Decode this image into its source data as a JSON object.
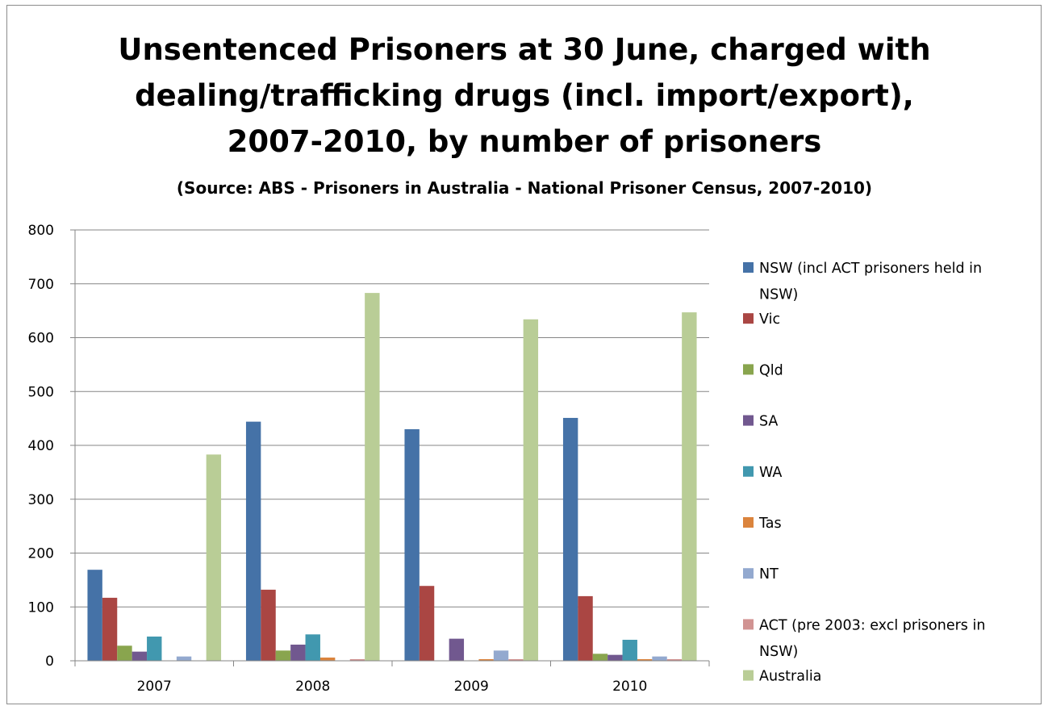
{
  "chart_data": {
    "type": "bar",
    "title_lines": [
      "Unsentenced Prisoners at 30 June, charged with",
      "dealing/trafficking drugs (incl. import/export),",
      "2007-2010, by number of prisoners"
    ],
    "subtitle": "(Source: ABS - Prisoners in Australia - National Prisoner Census, 2007-2010)",
    "categories": [
      "2007",
      "2008",
      "2009",
      "2010"
    ],
    "ylim": [
      0,
      800
    ],
    "yticks": [
      "0",
      "100",
      "200",
      "300",
      "400",
      "500",
      "600",
      "700",
      "800"
    ],
    "grid": true,
    "legend_position": "right",
    "series": [
      {
        "name": "NSW (incl ACT prisoners held in NSW)",
        "legend_lines": [
          "NSW (incl ACT prisoners held in",
          "NSW)"
        ],
        "color": "#4572A7",
        "values": [
          169,
          444,
          430,
          451
        ]
      },
      {
        "name": "Vic",
        "legend_lines": [
          "Vic"
        ],
        "color": "#AA4643",
        "values": [
          117,
          132,
          139,
          120
        ]
      },
      {
        "name": "Qld",
        "legend_lines": [
          "Qld"
        ],
        "color": "#89A54E",
        "values": [
          28,
          19,
          0,
          13
        ]
      },
      {
        "name": "SA",
        "legend_lines": [
          "SA"
        ],
        "color": "#71588F",
        "values": [
          17,
          30,
          41,
          11
        ]
      },
      {
        "name": "WA",
        "legend_lines": [
          "WA"
        ],
        "color": "#4198AF",
        "values": [
          45,
          49,
          0,
          39
        ]
      },
      {
        "name": "Tas",
        "legend_lines": [
          "Tas"
        ],
        "color": "#DB843D",
        "values": [
          0,
          6,
          3,
          3
        ]
      },
      {
        "name": "NT",
        "legend_lines": [
          "NT"
        ],
        "color": "#93A9CF",
        "values": [
          8,
          0,
          19,
          8
        ]
      },
      {
        "name": "ACT (pre 2003: excl prisoners in NSW)",
        "legend_lines": [
          "ACT (pre 2003: excl prisoners in",
          "NSW)"
        ],
        "color": "#D19392",
        "values": [
          0,
          3,
          3,
          3
        ]
      },
      {
        "name": "Australia",
        "legend_lines": [
          "Australia"
        ],
        "color": "#B9CD96",
        "values": [
          383,
          683,
          634,
          647
        ]
      }
    ]
  }
}
